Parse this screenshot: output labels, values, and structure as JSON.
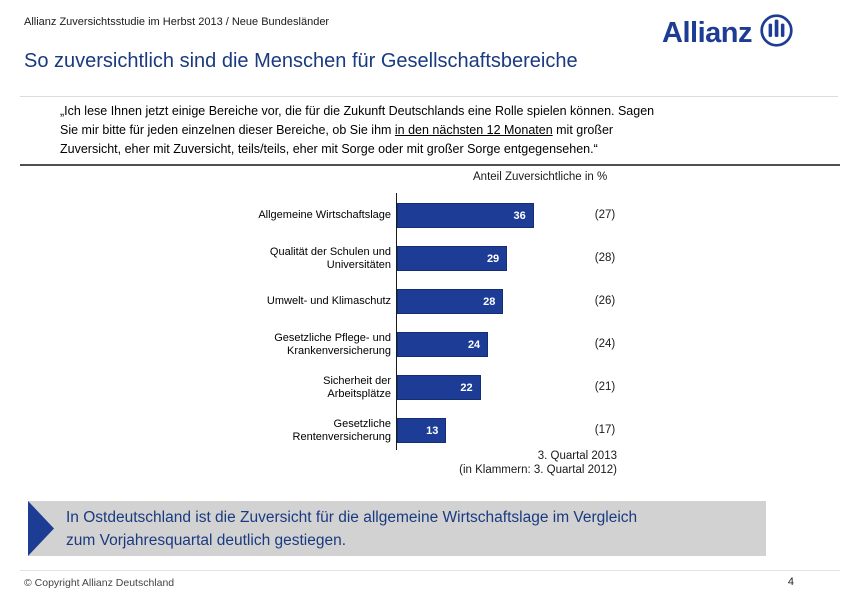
{
  "meta_header": "Allianz Zuversichtsstudie im Herbst 2013 / Neue Bundesländer",
  "logo": {
    "text": "Allianz",
    "icon": "allianz-eagle-icon",
    "color": "#1d3c94"
  },
  "title": "So zuversichtlich sind die Menschen für Gesellschaftsbereiche",
  "quote": {
    "line1": "„Ich lese Ihnen jetzt einige Bereiche vor, die für die Zukunft Deutschlands eine Rolle spielen können. Sagen",
    "line2_pre": "Sie mir bitte für jeden einzelnen dieser Bereiche, ob Sie ihm ",
    "line2_underline": "in den nächsten 12 Monaten",
    "line2_post": " mit großer",
    "line3": "Zuversicht, eher mit Zuversicht, teils/teils, eher mit Sorge oder mit großer Sorge entgegensehen.“"
  },
  "chart_data": {
    "type": "bar",
    "orientation": "horizontal",
    "title": "Anteil Zuversichtliche in %",
    "categories": [
      "Allgemeine Wirtschaftslage",
      "Qualität der Schulen und Universitäten",
      "Umwelt- und Klimaschutz",
      "Gesetzliche Pflege- und Krankenversicherung",
      "Sicherheit der Arbeitsplätze",
      "Gesetzliche Rentenversicherung"
    ],
    "category_label_lines": [
      [
        "Allgemeine Wirtschaftslage"
      ],
      [
        "Qualität der Schulen und",
        "Universitäten"
      ],
      [
        "Umwelt- und Klimaschutz"
      ],
      [
        "Gesetzliche Pflege- und",
        "Krankenversicherung"
      ],
      [
        "Sicherheit der",
        "Arbeitsplätze"
      ],
      [
        "Gesetzliche",
        "Rentenversicherung"
      ]
    ],
    "series": [
      {
        "name": "3. Quartal 2013",
        "values": [
          36,
          29,
          28,
          24,
          22,
          13
        ]
      },
      {
        "name": "3. Quartal 2012",
        "values": [
          27,
          28,
          26,
          24,
          21,
          17
        ],
        "display": "in parentheses"
      }
    ],
    "xlim": [
      0,
      40
    ],
    "grid": false,
    "bar_color": "#1c3c96",
    "footnote_line1": "3. Quartal 2013",
    "footnote_line2": "(in Klammern: 3. Quartal 2012)"
  },
  "highlight": {
    "line1": "In Ostdeutschland ist die Zuversicht für die allgemeine Wirtschaftslage im Vergleich",
    "line2": "zum Vorjahresquartal deutlich gestiegen.",
    "arrow_color": "#1d3c94",
    "background": "#d2d2d2",
    "text_color": "#1a3a80"
  },
  "footer": {
    "copyright": "© Copyright Allianz Deutschland",
    "page_number": "4"
  }
}
